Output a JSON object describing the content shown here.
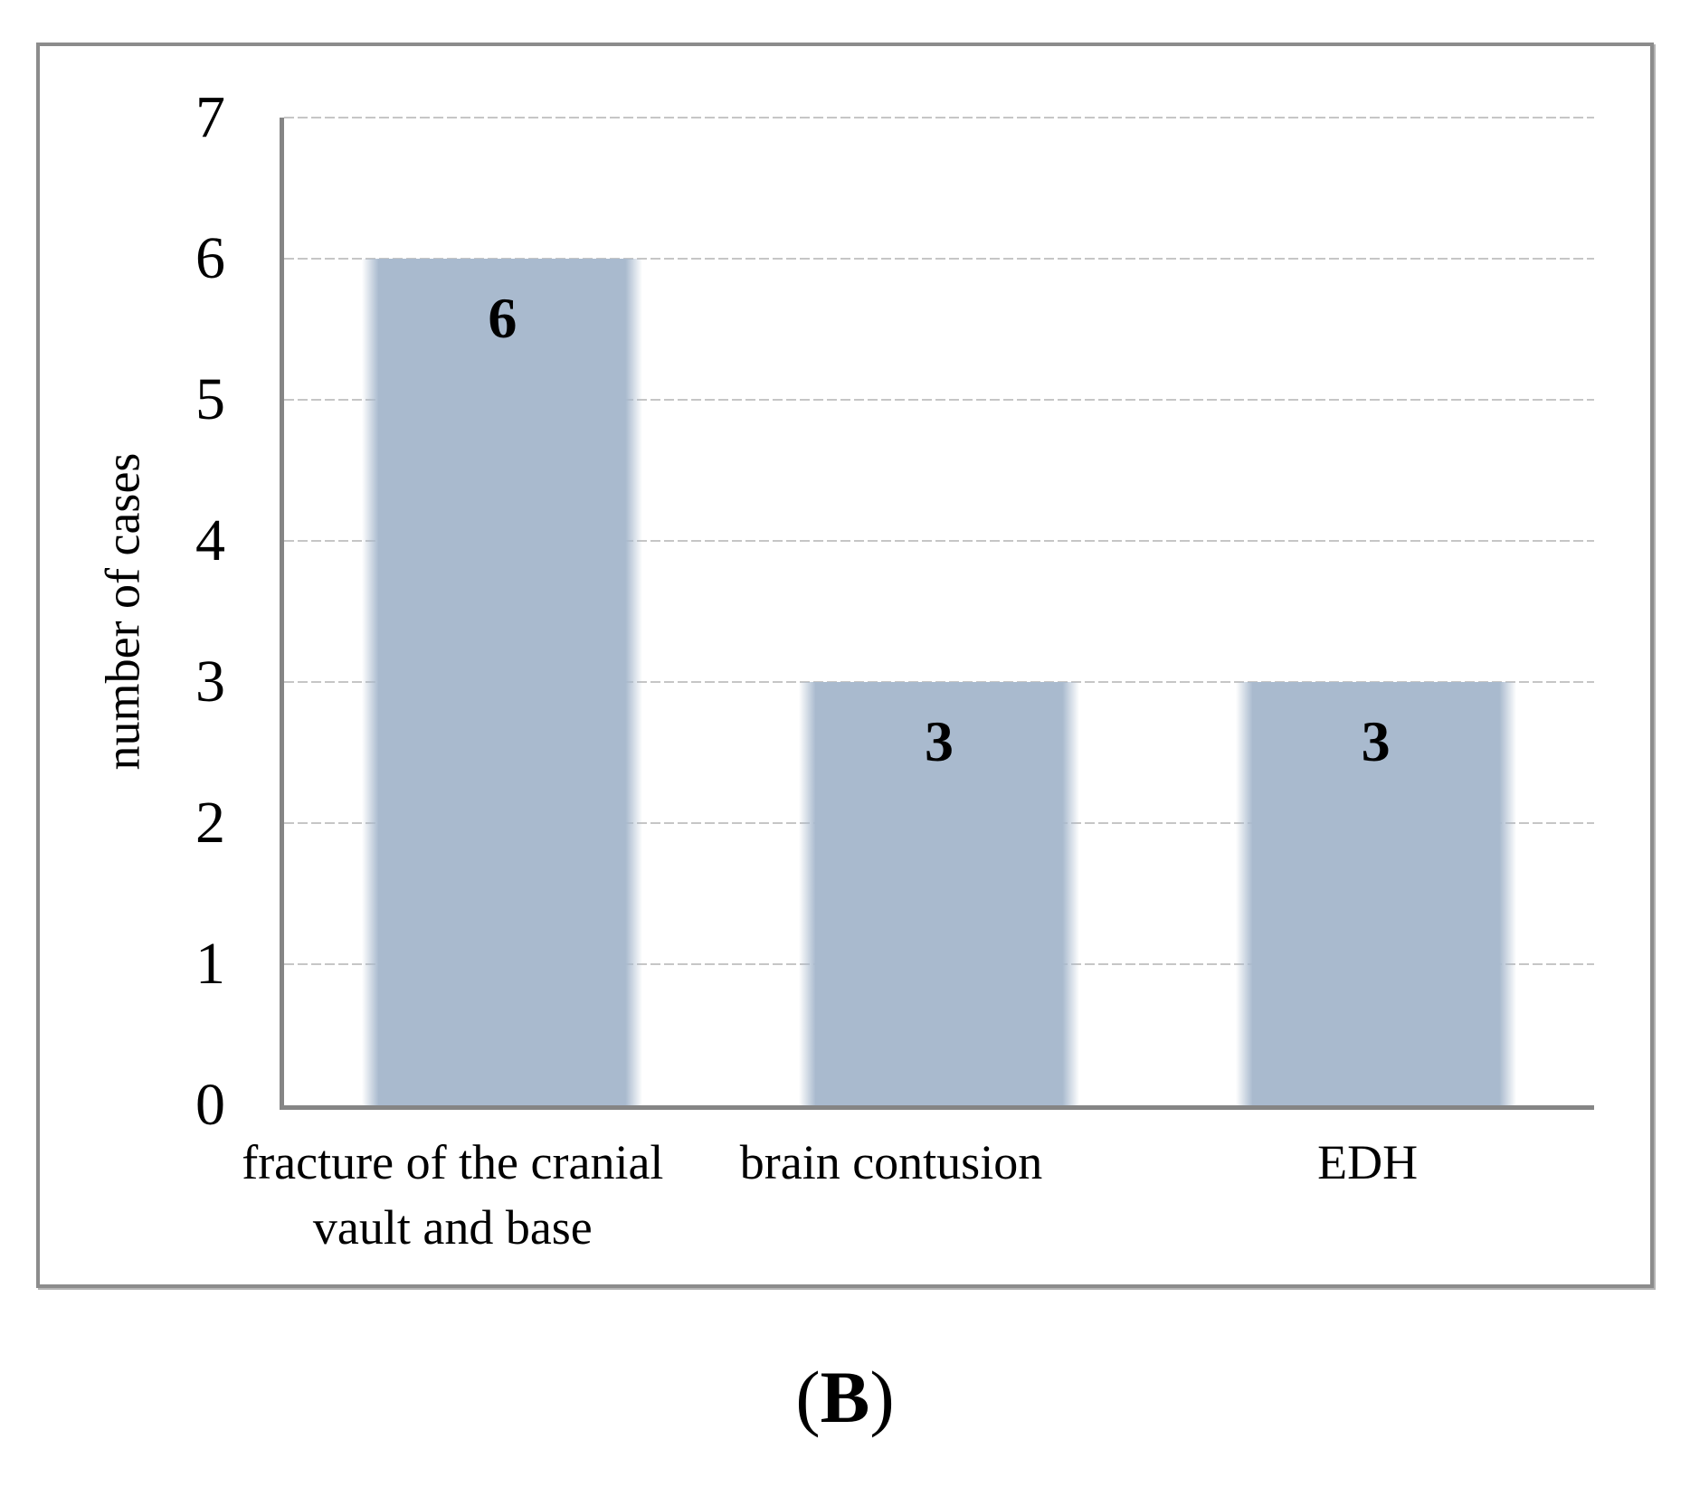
{
  "figure": {
    "caption_open": "(",
    "caption_letter": "B",
    "caption_close": ")"
  },
  "chart_data": {
    "type": "bar",
    "title": "",
    "categories": [
      "fracture of the cranial vault and base",
      "brain contusion",
      "EDH"
    ],
    "category_lines": [
      [
        "fracture of the cranial",
        "vault and base"
      ],
      [
        "brain contusion"
      ],
      [
        "EDH"
      ]
    ],
    "values": [
      6,
      3,
      3
    ],
    "data_labels": [
      "6",
      "3",
      "3"
    ],
    "xlabel": "",
    "ylabel": "number of cases",
    "ylim": [
      0,
      7
    ],
    "yticks": [
      0,
      1,
      2,
      3,
      4,
      5,
      6,
      7
    ],
    "grid": "horizontal-dashed",
    "legend": "none",
    "bar_color": "#a9bace",
    "axis_color": "#858585",
    "gridline_color": "#c6c6c6",
    "border_color": "#8c8c8c",
    "text_color": "#000000"
  }
}
